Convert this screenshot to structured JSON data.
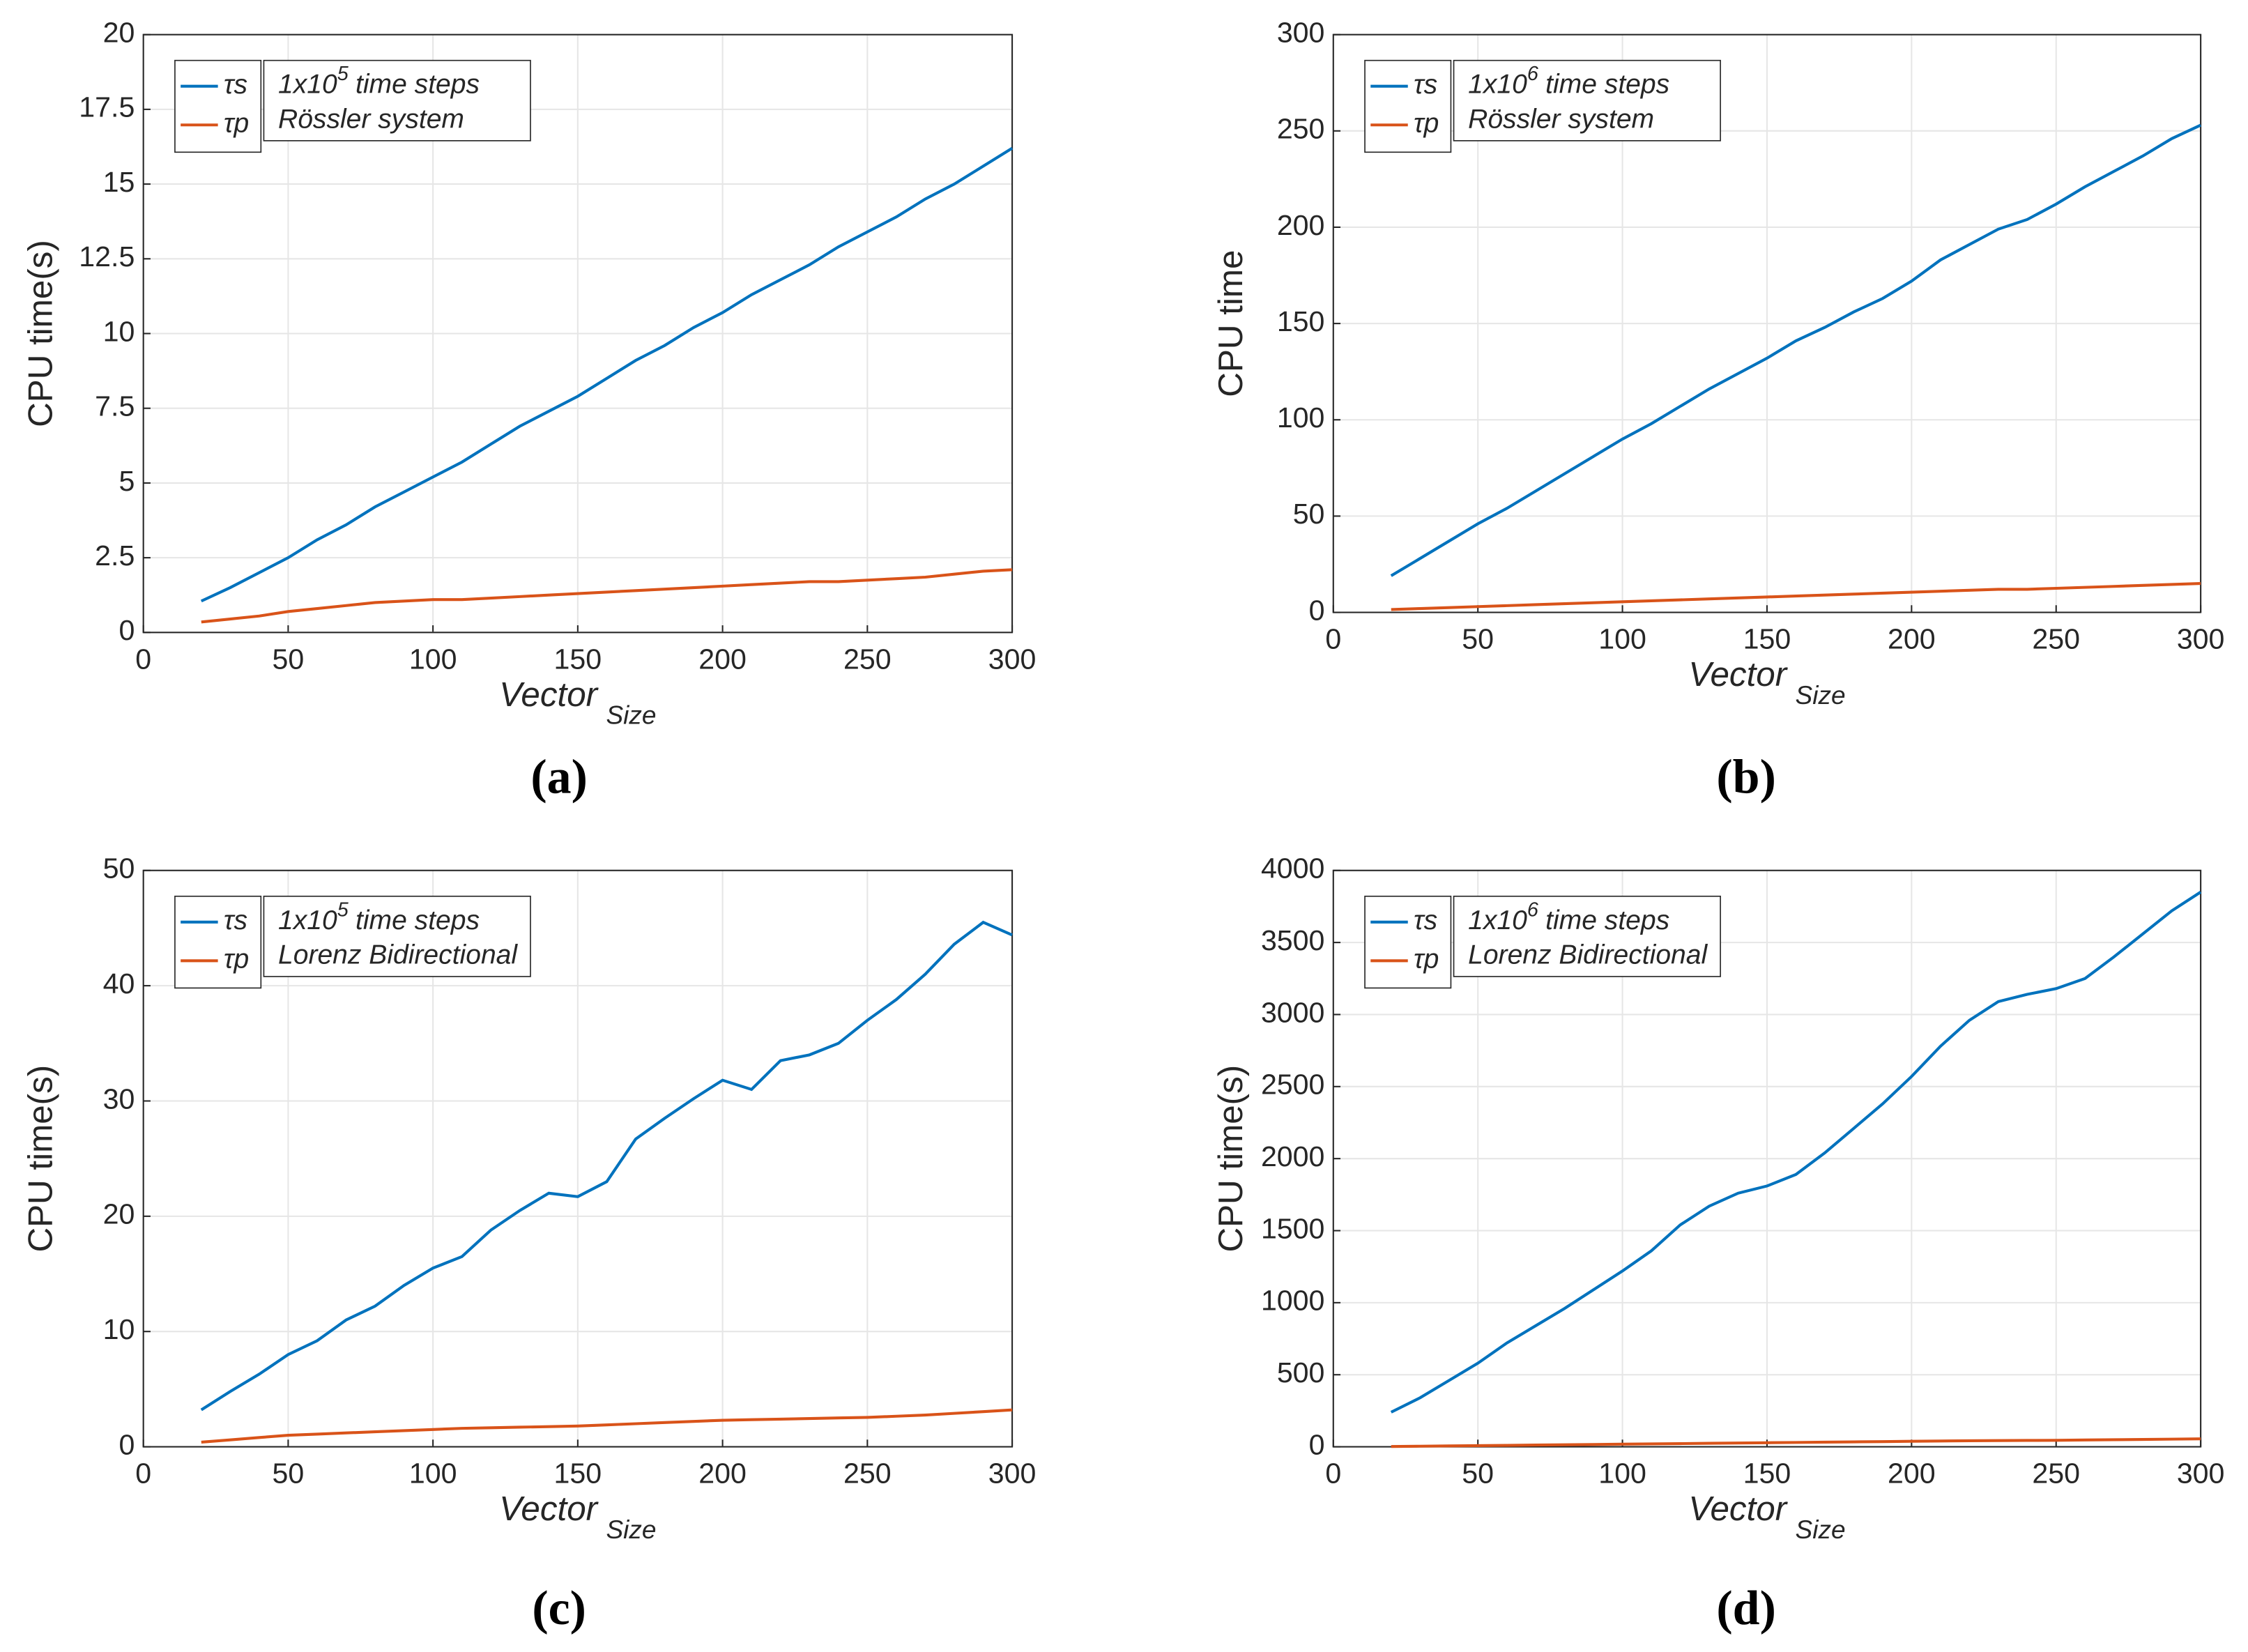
{
  "chart_data": [
    {
      "type": "line",
      "caption": "(a)",
      "ylabel": "CPU time(s)",
      "xlabel": {
        "text": "Vector",
        "subscript": "Size"
      },
      "annotation": {
        "base": "1x10",
        "exponent": "5",
        "text": "time steps",
        "line2": "Rössler system"
      },
      "x": [
        20,
        30,
        40,
        50,
        60,
        70,
        80,
        90,
        100,
        110,
        120,
        130,
        140,
        150,
        160,
        170,
        180,
        190,
        200,
        210,
        220,
        230,
        240,
        250,
        260,
        270,
        280,
        290,
        300
      ],
      "series": [
        {
          "name": "τs",
          "color": "#0072bd",
          "values": [
            1.05,
            1.5,
            2.0,
            2.5,
            3.1,
            3.6,
            4.2,
            4.7,
            5.2,
            5.7,
            6.3,
            6.9,
            7.4,
            7.9,
            8.5,
            9.1,
            9.6,
            10.2,
            10.7,
            11.3,
            11.8,
            12.3,
            12.9,
            13.4,
            13.9,
            14.5,
            15.0,
            15.6,
            16.2
          ]
        },
        {
          "name": "τp",
          "color": "#d95319",
          "values": [
            0.35,
            0.45,
            0.55,
            0.7,
            0.8,
            0.9,
            1.0,
            1.05,
            1.1,
            1.1,
            1.15,
            1.2,
            1.25,
            1.3,
            1.35,
            1.4,
            1.45,
            1.5,
            1.55,
            1.6,
            1.65,
            1.7,
            1.7,
            1.75,
            1.8,
            1.85,
            1.95,
            2.05,
            2.1
          ]
        }
      ],
      "xlim": [
        0,
        300
      ],
      "xticks": [
        0,
        50,
        100,
        150,
        200,
        250,
        300
      ],
      "ylim": [
        0,
        20
      ],
      "yticks": [
        0,
        2.5,
        5,
        7.5,
        10,
        12.5,
        15,
        17.5,
        20
      ],
      "grid": true
    },
    {
      "type": "line",
      "caption": "(b)",
      "ylabel": "CPU time",
      "xlabel": {
        "text": "Vector",
        "subscript": "Size"
      },
      "annotation": {
        "base": "1x10",
        "exponent": "6",
        "text": "time steps",
        "line2": "Rössler system"
      },
      "x": [
        20,
        30,
        40,
        50,
        60,
        70,
        80,
        90,
        100,
        110,
        120,
        130,
        140,
        150,
        160,
        170,
        180,
        190,
        200,
        210,
        220,
        230,
        240,
        250,
        260,
        270,
        280,
        290,
        300
      ],
      "series": [
        {
          "name": "τs",
          "color": "#0072bd",
          "values": [
            19,
            28,
            37,
            46,
            54,
            63,
            72,
            81,
            90,
            98,
            107,
            116,
            124,
            132,
            141,
            148,
            156,
            163,
            172,
            183,
            191,
            199,
            204,
            212,
            221,
            229,
            237,
            246,
            253
          ]
        },
        {
          "name": "τp",
          "color": "#d95319",
          "values": [
            1.5,
            2,
            2.5,
            3,
            3.5,
            4,
            4.5,
            5,
            5.5,
            6,
            6.5,
            7,
            7.5,
            8,
            8.5,
            9,
            9.5,
            10,
            10.5,
            11,
            11.5,
            12,
            12,
            12.5,
            13,
            13.5,
            14,
            14.5,
            15
          ]
        }
      ],
      "xlim": [
        0,
        300
      ],
      "xticks": [
        0,
        50,
        100,
        150,
        200,
        250,
        300
      ],
      "ylim": [
        0,
        300
      ],
      "yticks": [
        0,
        50,
        100,
        150,
        200,
        250,
        300
      ],
      "grid": true
    },
    {
      "type": "line",
      "caption": "(c)",
      "ylabel": "CPU time(s)",
      "xlabel": {
        "text": "Vector",
        "subscript": "Size"
      },
      "annotation": {
        "base": "1x10",
        "exponent": "5",
        "text": "time steps",
        "line2": "Lorenz Bidirectional"
      },
      "x": [
        20,
        30,
        40,
        50,
        60,
        70,
        80,
        90,
        100,
        110,
        120,
        130,
        140,
        150,
        160,
        170,
        180,
        190,
        200,
        210,
        220,
        230,
        240,
        250,
        260,
        270,
        280,
        290,
        300
      ],
      "series": [
        {
          "name": "τs",
          "color": "#0072bd",
          "values": [
            3.2,
            4.8,
            6.3,
            8.0,
            9.2,
            11.0,
            12.2,
            14.0,
            15.5,
            16.5,
            18.8,
            20.5,
            22.0,
            21.7,
            23.0,
            26.7,
            28.5,
            30.2,
            31.8,
            31.0,
            33.5,
            34.0,
            35.0,
            37.0,
            38.8,
            41.0,
            43.6,
            45.5,
            44.4
          ]
        },
        {
          "name": "τp",
          "color": "#d95319",
          "values": [
            0.4,
            0.6,
            0.8,
            1.0,
            1.1,
            1.2,
            1.3,
            1.4,
            1.5,
            1.6,
            1.65,
            1.7,
            1.75,
            1.8,
            1.9,
            2.0,
            2.1,
            2.2,
            2.3,
            2.35,
            2.4,
            2.45,
            2.5,
            2.55,
            2.65,
            2.75,
            2.9,
            3.05,
            3.2
          ]
        }
      ],
      "xlim": [
        0,
        300
      ],
      "xticks": [
        0,
        50,
        100,
        150,
        200,
        250,
        300
      ],
      "ylim": [
        0,
        50
      ],
      "yticks": [
        0,
        10,
        20,
        30,
        40,
        50
      ],
      "grid": true
    },
    {
      "type": "line",
      "caption": "(d)",
      "ylabel": "CPU time(s)",
      "xlabel": {
        "text": "Vector",
        "subscript": "Size"
      },
      "annotation": {
        "base": "1x10",
        "exponent": "6",
        "text": "time steps",
        "line2": "Lorenz Bidirectional"
      },
      "x": [
        20,
        30,
        40,
        50,
        60,
        70,
        80,
        90,
        100,
        110,
        120,
        130,
        140,
        150,
        160,
        170,
        180,
        190,
        200,
        210,
        220,
        230,
        240,
        250,
        260,
        270,
        280,
        290,
        300
      ],
      "series": [
        {
          "name": "τs",
          "color": "#0072bd",
          "values": [
            240,
            340,
            460,
            580,
            720,
            840,
            960,
            1090,
            1220,
            1360,
            1540,
            1670,
            1760,
            1810,
            1890,
            2040,
            2210,
            2380,
            2570,
            2780,
            2960,
            3090,
            3140,
            3180,
            3250,
            3400,
            3560,
            3720,
            3850
          ]
        },
        {
          "name": "τp",
          "color": "#d95319",
          "values": [
            2,
            4,
            6,
            8,
            10,
            12,
            14,
            16,
            18,
            20,
            22,
            24,
            26,
            28,
            30,
            32,
            34,
            36,
            38,
            40,
            42,
            43,
            44,
            45,
            47,
            49,
            51,
            53,
            55
          ]
        }
      ],
      "xlim": [
        0,
        300
      ],
      "xticks": [
        0,
        50,
        100,
        150,
        200,
        250,
        300
      ],
      "ylim": [
        0,
        4000
      ],
      "yticks": [
        0,
        500,
        1000,
        1500,
        2000,
        2500,
        3000,
        3500,
        4000
      ],
      "grid": true
    }
  ]
}
